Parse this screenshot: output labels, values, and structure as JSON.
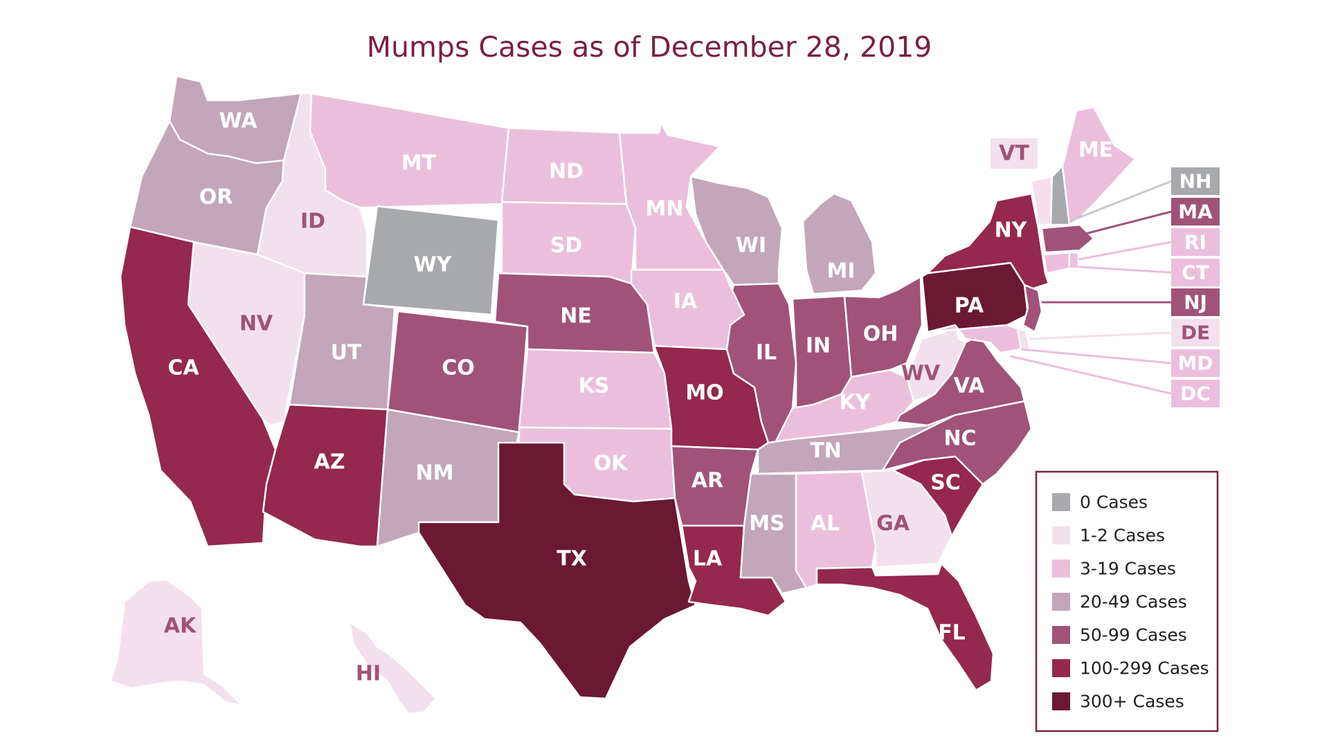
{
  "map": {
    "title": "Mumps Cases as of December 28, 2019",
    "palette": {
      "c0": "#a7a9ac",
      "c1": "#f2e1ec",
      "c3": "#ebbfdb",
      "c20": "#c3a6b8",
      "c50": "#a05377",
      "c100": "#94284f",
      "c300": "#6b1833",
      "border": "#7a1f45"
    },
    "legend": [
      {
        "key": "c0",
        "label": "0 Cases"
      },
      {
        "key": "c1",
        "label": "1-2 Cases"
      },
      {
        "key": "c3",
        "label": "3-19 Cases"
      },
      {
        "key": "c20",
        "label": "20-49 Cases"
      },
      {
        "key": "c50",
        "label": "50-99 Cases"
      },
      {
        "key": "c100",
        "label": "100-299 Cases"
      },
      {
        "key": "c300",
        "label": "300+ Cases"
      }
    ],
    "states": [
      {
        "abbr": "WA",
        "cat": "c20"
      },
      {
        "abbr": "OR",
        "cat": "c20"
      },
      {
        "abbr": "CA",
        "cat": "c100"
      },
      {
        "abbr": "ID",
        "cat": "c1"
      },
      {
        "abbr": "NV",
        "cat": "c1"
      },
      {
        "abbr": "MT",
        "cat": "c3"
      },
      {
        "abbr": "WY",
        "cat": "c0"
      },
      {
        "abbr": "UT",
        "cat": "c20"
      },
      {
        "abbr": "AZ",
        "cat": "c100"
      },
      {
        "abbr": "CO",
        "cat": "c50"
      },
      {
        "abbr": "NM",
        "cat": "c20"
      },
      {
        "abbr": "ND",
        "cat": "c3"
      },
      {
        "abbr": "SD",
        "cat": "c3"
      },
      {
        "abbr": "NE",
        "cat": "c50"
      },
      {
        "abbr": "KS",
        "cat": "c3"
      },
      {
        "abbr": "OK",
        "cat": "c3"
      },
      {
        "abbr": "TX",
        "cat": "c300"
      },
      {
        "abbr": "MN",
        "cat": "c3"
      },
      {
        "abbr": "IA",
        "cat": "c3"
      },
      {
        "abbr": "MO",
        "cat": "c100"
      },
      {
        "abbr": "AR",
        "cat": "c50"
      },
      {
        "abbr": "LA",
        "cat": "c100"
      },
      {
        "abbr": "WI",
        "cat": "c20"
      },
      {
        "abbr": "IL",
        "cat": "c50"
      },
      {
        "abbr": "MI",
        "cat": "c20"
      },
      {
        "abbr": "IN",
        "cat": "c50"
      },
      {
        "abbr": "OH",
        "cat": "c50"
      },
      {
        "abbr": "KY",
        "cat": "c3"
      },
      {
        "abbr": "TN",
        "cat": "c20"
      },
      {
        "abbr": "MS",
        "cat": "c20"
      },
      {
        "abbr": "AL",
        "cat": "c3"
      },
      {
        "abbr": "GA",
        "cat": "c1"
      },
      {
        "abbr": "FL",
        "cat": "c100"
      },
      {
        "abbr": "SC",
        "cat": "c100"
      },
      {
        "abbr": "NC",
        "cat": "c50"
      },
      {
        "abbr": "VA",
        "cat": "c50"
      },
      {
        "abbr": "WV",
        "cat": "c1"
      },
      {
        "abbr": "PA",
        "cat": "c300"
      },
      {
        "abbr": "NY",
        "cat": "c100"
      },
      {
        "abbr": "VT",
        "cat": "c1"
      },
      {
        "abbr": "ME",
        "cat": "c3"
      },
      {
        "abbr": "AK",
        "cat": "c1"
      },
      {
        "abbr": "HI",
        "cat": "c1"
      }
    ],
    "callouts": [
      {
        "abbr": "NH",
        "cat": "c0"
      },
      {
        "abbr": "MA",
        "cat": "c50"
      },
      {
        "abbr": "RI",
        "cat": "c3"
      },
      {
        "abbr": "CT",
        "cat": "c3"
      },
      {
        "abbr": "NJ",
        "cat": "c50"
      },
      {
        "abbr": "DE",
        "cat": "c1"
      },
      {
        "abbr": "MD",
        "cat": "c3"
      },
      {
        "abbr": "DC",
        "cat": "c3"
      }
    ]
  }
}
